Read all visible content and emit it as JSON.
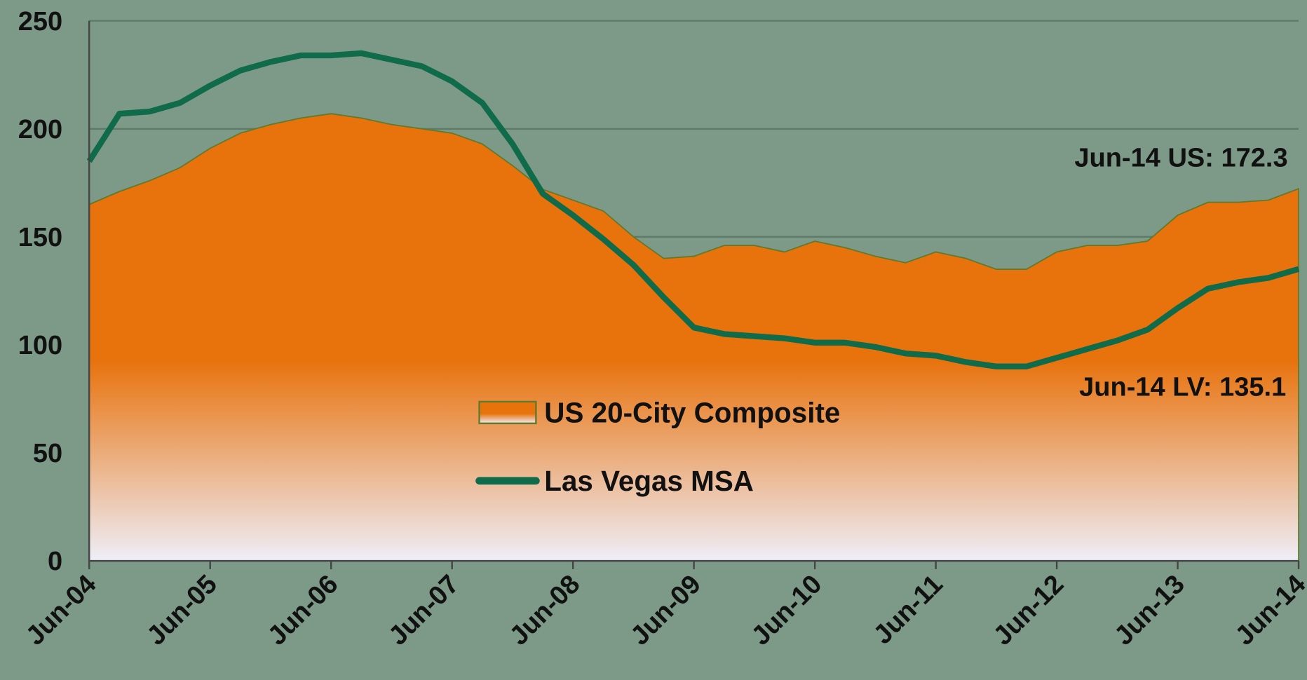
{
  "chart_data": {
    "type": "area_line",
    "categories": [
      "Jun-04",
      null,
      null,
      null,
      "Jun-05",
      null,
      null,
      null,
      "Jun-06",
      null,
      null,
      null,
      "Jun-07",
      null,
      null,
      null,
      "Jun-08",
      null,
      null,
      null,
      "Jun-09",
      null,
      null,
      null,
      "Jun-10",
      null,
      null,
      null,
      "Jun-11",
      null,
      null,
      null,
      "Jun-12",
      null,
      null,
      null,
      "Jun-13",
      null,
      null,
      null,
      "Jun-14"
    ],
    "series": [
      {
        "name": "US 20-City Composite",
        "kind": "area",
        "color": "#e8720c",
        "values": [
          165,
          171,
          176,
          182,
          191,
          198,
          202,
          205,
          207,
          205,
          202,
          200,
          198,
          193,
          183,
          172,
          167,
          162,
          150,
          140,
          141,
          146,
          146,
          143,
          148,
          145,
          141,
          138,
          143,
          140,
          135,
          135,
          143,
          146,
          146,
          148,
          160,
          166,
          166,
          167,
          172.3
        ]
      },
      {
        "name": "Las Vegas MSA",
        "kind": "line",
        "color": "#0f6b4a",
        "values": [
          185,
          207,
          208,
          212,
          220,
          227,
          231,
          234,
          234,
          235,
          232,
          229,
          222,
          212,
          193,
          170,
          160,
          149,
          137,
          122,
          108,
          105,
          104,
          103,
          101,
          101,
          99,
          96,
          95,
          92,
          90,
          90,
          94,
          98,
          102,
          107,
          117,
          126,
          129,
          131,
          135.1
        ]
      }
    ],
    "annotations": [
      "Jun-14 US: 172.3",
      "Jun-14 LV: 135.1"
    ],
    "ylim": [
      0,
      250
    ],
    "yticks": [
      0,
      50,
      100,
      150,
      200,
      250
    ],
    "grid": true
  }
}
